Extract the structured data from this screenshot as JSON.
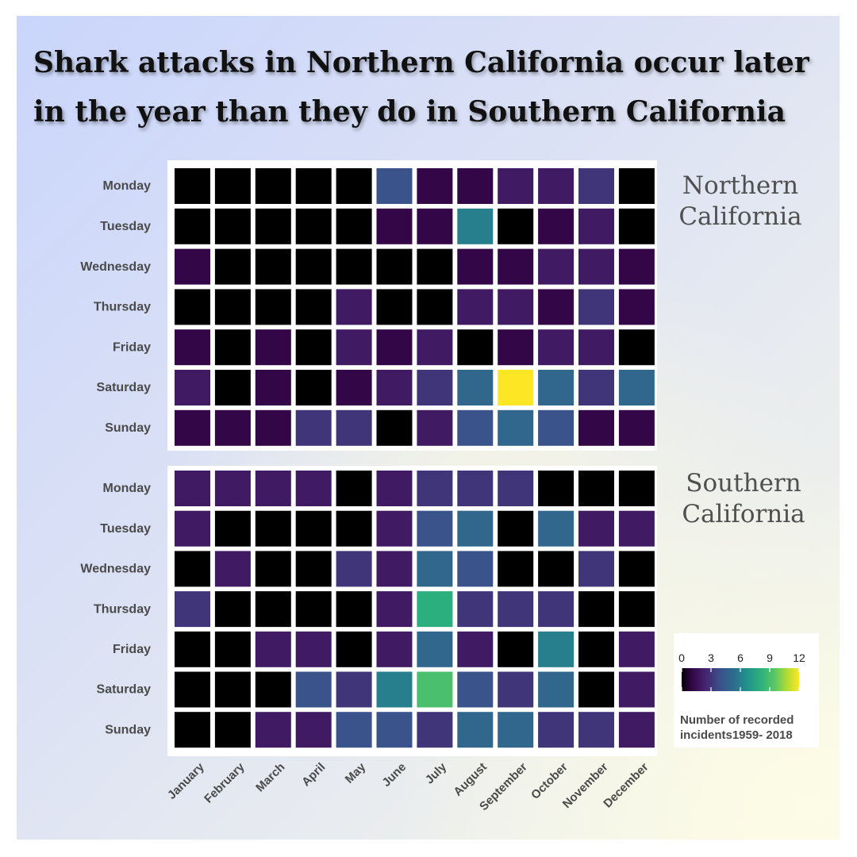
{
  "title": "Shark attacks in Northern California occur later in the year than they do in Southern California",
  "chart_data": [
    {
      "type": "heatmap",
      "title": "Northern California",
      "days": [
        "Monday",
        "Tuesday",
        "Wednesday",
        "Thursday",
        "Friday",
        "Saturday",
        "Sunday"
      ],
      "months": [
        "January",
        "February",
        "March",
        "April",
        "May",
        "June",
        "July",
        "August",
        "September",
        "October",
        "November",
        "December"
      ],
      "values": [
        [
          0,
          0,
          0,
          0,
          0,
          4,
          1,
          1,
          2,
          2,
          3,
          0
        ],
        [
          0,
          0,
          0,
          0,
          0,
          1,
          1,
          6,
          0,
          1,
          2,
          0
        ],
        [
          1,
          0,
          0,
          0,
          0,
          0,
          0,
          1,
          1,
          2,
          2,
          1
        ],
        [
          0,
          0,
          0,
          0,
          2,
          0,
          0,
          2,
          2,
          1,
          3,
          1
        ],
        [
          1,
          0,
          1,
          0,
          2,
          1,
          2,
          0,
          1,
          2,
          2,
          0
        ],
        [
          2,
          0,
          1,
          0,
          1,
          2,
          3,
          5,
          12,
          5,
          3,
          5
        ],
        [
          1,
          1,
          1,
          3,
          3,
          0,
          2,
          4,
          5,
          4,
          1,
          1
        ]
      ]
    },
    {
      "type": "heatmap",
      "title": "Southern California",
      "days": [
        "Monday",
        "Tuesday",
        "Wednesday",
        "Thursday",
        "Friday",
        "Saturday",
        "Sunday"
      ],
      "months": [
        "January",
        "February",
        "March",
        "April",
        "May",
        "June",
        "July",
        "August",
        "September",
        "October",
        "November",
        "December"
      ],
      "values": [
        [
          2,
          2,
          2,
          2,
          0,
          2,
          3,
          3,
          3,
          0,
          0,
          0
        ],
        [
          2,
          0,
          0,
          0,
          0,
          2,
          4,
          5,
          0,
          5,
          2,
          2
        ],
        [
          0,
          2,
          0,
          0,
          3,
          2,
          5,
          4,
          0,
          0,
          3,
          0
        ],
        [
          3,
          0,
          0,
          0,
          0,
          2,
          8,
          3,
          3,
          3,
          0,
          0
        ],
        [
          0,
          0,
          2,
          2,
          0,
          2,
          5,
          2,
          0,
          6,
          0,
          2
        ],
        [
          0,
          0,
          0,
          4,
          3,
          6,
          9,
          4,
          3,
          5,
          0,
          2
        ],
        [
          0,
          0,
          2,
          2,
          4,
          4,
          3,
          5,
          5,
          3,
          3,
          2
        ]
      ]
    }
  ],
  "legend": {
    "ticks": [
      "0",
      "3",
      "6",
      "9",
      "12"
    ],
    "min": 0,
    "max": 12,
    "title": "Number of recorded incidents1959- 2018"
  }
}
